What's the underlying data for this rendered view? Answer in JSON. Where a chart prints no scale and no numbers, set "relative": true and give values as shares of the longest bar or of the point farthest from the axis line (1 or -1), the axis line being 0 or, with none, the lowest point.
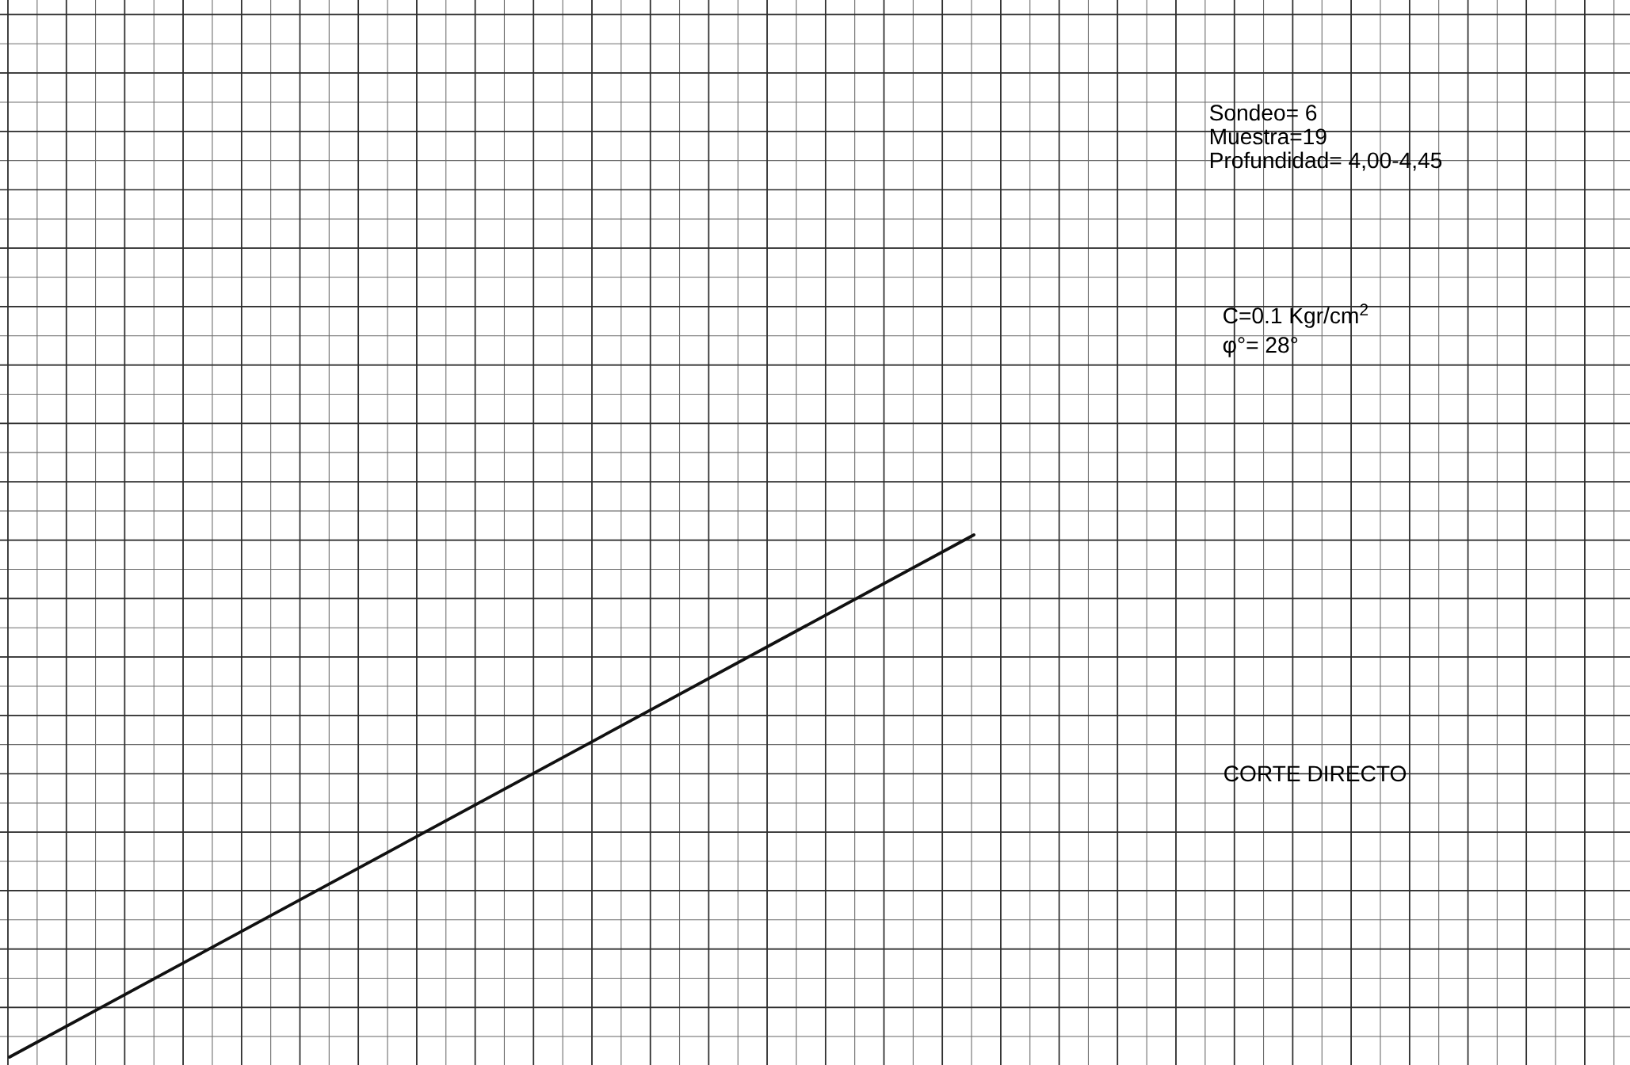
{
  "chart_data": {
    "type": "line",
    "relative": true,
    "categories": [
      null,
      null
    ],
    "values": [
      0,
      1
    ],
    "color": "#111111",
    "grid": true,
    "annotations": [
      "Sondeo= 6",
      "Muestra=19",
      "Profundidad= 4,00-4,45",
      "C=0.1 Kgr/cm$^{2}$",
      "φ°= 28°",
      "CORTE DIRECTO"
    ]
  }
}
